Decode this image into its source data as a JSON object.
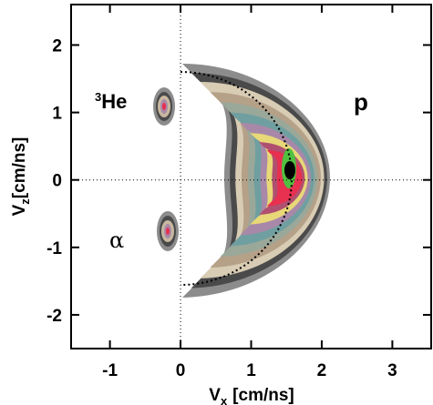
{
  "chart_data": {
    "type": "contour",
    "x_label": {
      "symbol": "V",
      "subscript": "x",
      "unit": "[cm/ns]"
    },
    "y_label": {
      "symbol": "V",
      "subscript": "z",
      "unit": "[cm/ns]"
    },
    "xlim": [
      -1.55,
      3.55
    ],
    "ylim": [
      -2.5,
      2.6
    ],
    "xticks": [
      -1,
      0,
      1,
      2,
      3
    ],
    "yticks": [
      -2,
      -1,
      0,
      1,
      2
    ],
    "zero_lines": true,
    "annotations": [
      {
        "superscript": "3",
        "text": "He"
      },
      {
        "text": "α"
      },
      {
        "text": "p"
      }
    ]
  }
}
